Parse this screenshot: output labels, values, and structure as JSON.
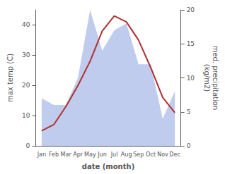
{
  "chart_data": {
    "type": "line",
    "categories": [
      "Jan",
      "Feb",
      "Mar",
      "Apr",
      "May",
      "Jun",
      "Jul",
      "Aug",
      "Sep",
      "Oct",
      "Nov",
      "Dec"
    ],
    "xlabel": "date (month)",
    "ylabel": "max temp (C)",
    "y2label": "med. precipitation\n(kg/m2)",
    "series": [
      {
        "type": "area",
        "color": "#c0ccee",
        "axis": "y2",
        "values": [
          7,
          6,
          6,
          10,
          20,
          14,
          17,
          18,
          12,
          12,
          4,
          8
        ]
      },
      {
        "type": "line",
        "color": "#b03030",
        "values": [
          5,
          7,
          13,
          20,
          28,
          38,
          43,
          41,
          35,
          26,
          16,
          11
        ]
      }
    ],
    "ylim": [
      0,
      45
    ],
    "yticks": [
      0,
      10,
      20,
      30,
      40
    ],
    "y2lim": [
      0,
      20
    ],
    "y2ticks": [
      0,
      5,
      10,
      15,
      20
    ],
    "grid": false
  }
}
